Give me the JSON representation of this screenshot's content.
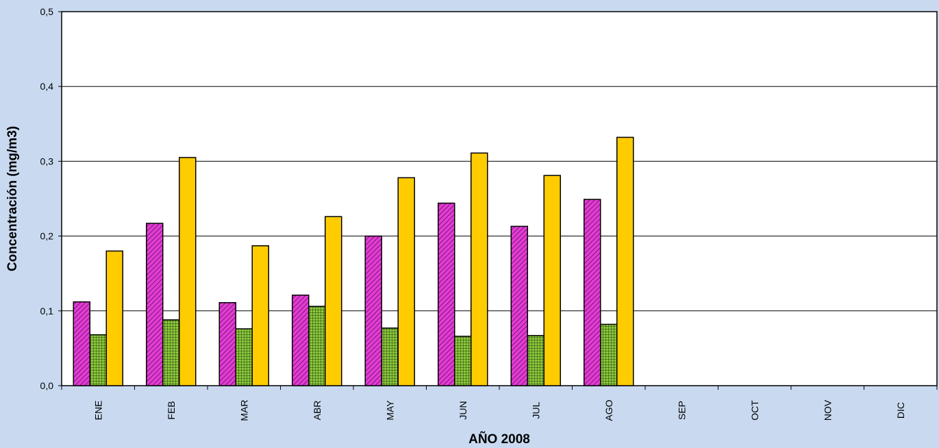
{
  "chart_data": {
    "type": "bar",
    "xlabel": "AÑO 2008",
    "ylabel": "Concentración (mg/m3)",
    "categories": [
      "ENE",
      "FEB",
      "MAR",
      "ABR",
      "MAY",
      "JUN",
      "JUL",
      "AGO",
      "SEP",
      "OCT",
      "NOV",
      "DIC"
    ],
    "series": [
      {
        "values": [
          0.112,
          0.217,
          0.111,
          0.121,
          0.2,
          0.244,
          0.213,
          0.249,
          null,
          null,
          null,
          null
        ],
        "color": "#e43bd6",
        "pattern": "diagonal-hatch"
      },
      {
        "values": [
          0.068,
          0.088,
          0.076,
          0.106,
          0.077,
          0.066,
          0.067,
          0.082,
          null,
          null,
          null,
          null
        ],
        "color": "#8cc83c",
        "pattern": "cross-hatch"
      },
      {
        "values": [
          0.18,
          0.305,
          0.187,
          0.226,
          0.278,
          0.311,
          0.281,
          0.332,
          null,
          null,
          null,
          null
        ],
        "color": "#ffcc00",
        "pattern": "solid"
      }
    ],
    "ylim": [
      0,
      0.5
    ],
    "yticks": [
      "0,0",
      "0,1",
      "0,2",
      "0,3",
      "0,4",
      "0,5"
    ],
    "grid": true,
    "legend": "none",
    "background_color": "#c9daf0",
    "plot_background": "#ffffff"
  }
}
